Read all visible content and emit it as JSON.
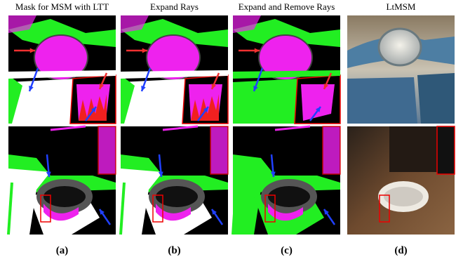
{
  "figure": {
    "columns": [
      {
        "title": "Mask for MSM with LTT",
        "label": "(a)"
      },
      {
        "title": "Expand Rays",
        "label": "(b)"
      },
      {
        "title": "Expand and Remove Rays",
        "label": "(c)"
      },
      {
        "title": "LtMSM",
        "label": "(d)"
      }
    ]
  }
}
